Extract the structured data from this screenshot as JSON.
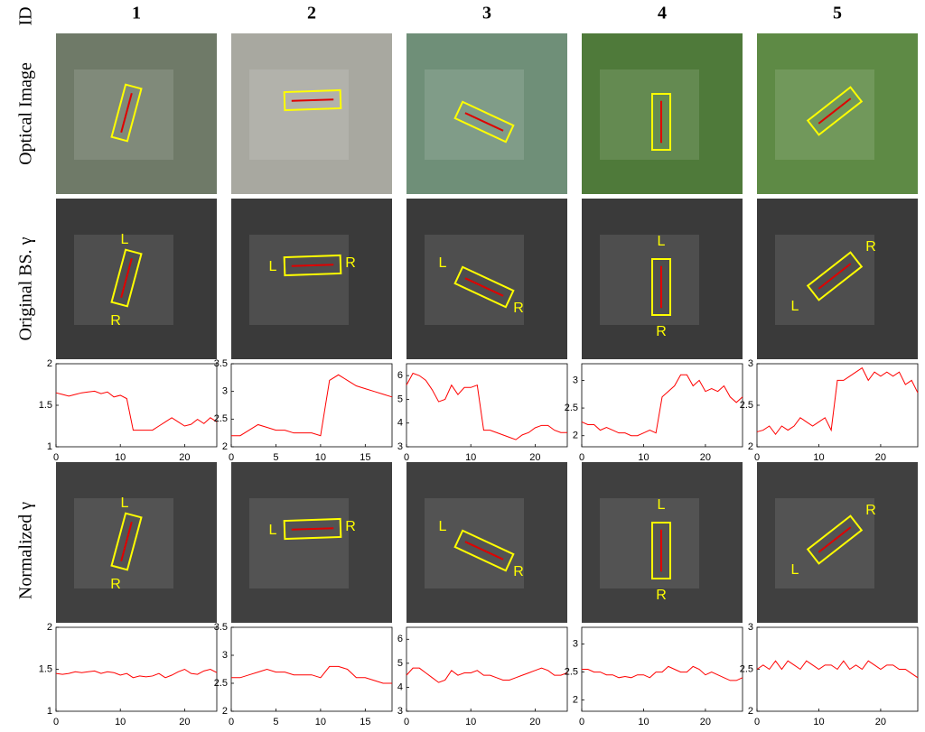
{
  "id_label": "ID",
  "column_ids": [
    "1",
    "2",
    "3",
    "4",
    "5"
  ],
  "row_labels": [
    "Optical Image",
    "Original BS. γ",
    "Normalized γ"
  ],
  "end_labels": {
    "left": "L",
    "right": "R"
  },
  "chart_data": [
    {
      "type": "line",
      "color": "#ff0000",
      "x": [
        0,
        1,
        2,
        3,
        4,
        5,
        6,
        7,
        8,
        9,
        10,
        11,
        12,
        13,
        14,
        15,
        16,
        17,
        18,
        19,
        20,
        21,
        22,
        23,
        24,
        25
      ],
      "values": [
        1.65,
        1.63,
        1.61,
        1.63,
        1.65,
        1.66,
        1.67,
        1.64,
        1.66,
        1.6,
        1.62,
        1.58,
        1.2,
        1.2,
        1.2,
        1.2,
        1.25,
        1.3,
        1.35,
        1.3,
        1.25,
        1.27,
        1.33,
        1.28,
        1.35,
        1.3
      ],
      "xlim": [
        0,
        25
      ],
      "xticks": [
        0,
        10,
        20
      ],
      "ylim": [
        1,
        2
      ],
      "yticks": [
        1,
        1.5,
        2
      ]
    },
    {
      "type": "line",
      "color": "#ff0000",
      "x": [
        0,
        1,
        2,
        3,
        4,
        5,
        6,
        7,
        8,
        9,
        10,
        11,
        12,
        13,
        14,
        15,
        16,
        17,
        18
      ],
      "values": [
        2.2,
        2.2,
        2.3,
        2.4,
        2.35,
        2.3,
        2.3,
        2.25,
        2.25,
        2.25,
        2.2,
        3.2,
        3.3,
        3.2,
        3.1,
        3.05,
        3.0,
        2.95,
        2.9
      ],
      "xlim": [
        0,
        18
      ],
      "xticks": [
        0,
        5,
        10,
        15
      ],
      "ylim": [
        2,
        3.5
      ],
      "yticks": [
        2,
        2.5,
        3,
        3.5
      ]
    },
    {
      "type": "line",
      "color": "#ff0000",
      "x": [
        0,
        1,
        2,
        3,
        4,
        5,
        6,
        7,
        8,
        9,
        10,
        11,
        12,
        13,
        14,
        15,
        16,
        17,
        18,
        19,
        20,
        21,
        22,
        23,
        24,
        25
      ],
      "values": [
        5.6,
        6.1,
        6.0,
        5.8,
        5.4,
        4.9,
        5.0,
        5.6,
        5.2,
        5.5,
        5.5,
        5.6,
        3.7,
        3.7,
        3.6,
        3.5,
        3.4,
        3.3,
        3.5,
        3.6,
        3.8,
        3.9,
        3.9,
        3.7,
        3.6,
        3.6
      ],
      "xlim": [
        0,
        25
      ],
      "xticks": [
        0,
        10,
        20
      ],
      "ylim": [
        3,
        6.5
      ],
      "yticks": [
        3,
        4,
        5,
        6
      ]
    },
    {
      "type": "line",
      "color": "#ff0000",
      "x": [
        0,
        1,
        2,
        3,
        4,
        5,
        6,
        7,
        8,
        9,
        10,
        11,
        12,
        13,
        14,
        15,
        16,
        17,
        18,
        19,
        20,
        21,
        22,
        23,
        24,
        25,
        26
      ],
      "values": [
        2.25,
        2.2,
        2.2,
        2.1,
        2.15,
        2.1,
        2.05,
        2.05,
        2.0,
        2.0,
        2.05,
        2.1,
        2.05,
        2.7,
        2.8,
        2.9,
        3.1,
        3.1,
        2.9,
        3.0,
        2.8,
        2.85,
        2.8,
        2.9,
        2.7,
        2.6,
        2.7
      ],
      "xlim": [
        0,
        26
      ],
      "xticks": [
        0,
        10,
        20
      ],
      "ylim": [
        1.8,
        3.3
      ],
      "yticks": [
        2,
        2.5,
        3
      ]
    },
    {
      "type": "line",
      "color": "#ff0000",
      "x": [
        0,
        1,
        2,
        3,
        4,
        5,
        6,
        7,
        8,
        9,
        10,
        11,
        12,
        13,
        14,
        15,
        16,
        17,
        18,
        19,
        20,
        21,
        22,
        23,
        24,
        25,
        26
      ],
      "values": [
        2.18,
        2.2,
        2.25,
        2.15,
        2.25,
        2.2,
        2.25,
        2.35,
        2.3,
        2.25,
        2.3,
        2.35,
        2.2,
        2.8,
        2.8,
        2.85,
        2.9,
        2.95,
        2.8,
        2.9,
        2.85,
        2.9,
        2.85,
        2.9,
        2.75,
        2.8,
        2.65
      ],
      "xlim": [
        0,
        26
      ],
      "xticks": [
        0,
        10,
        20
      ],
      "ylim": [
        2,
        3
      ],
      "yticks": [
        2,
        2.5,
        3
      ]
    },
    {
      "type": "line",
      "color": "#ff0000",
      "x": [
        0,
        1,
        2,
        3,
        4,
        5,
        6,
        7,
        8,
        9,
        10,
        11,
        12,
        13,
        14,
        15,
        16,
        17,
        18,
        19,
        20,
        21,
        22,
        23,
        24,
        25
      ],
      "values": [
        1.45,
        1.44,
        1.45,
        1.47,
        1.46,
        1.47,
        1.48,
        1.45,
        1.47,
        1.46,
        1.43,
        1.45,
        1.4,
        1.42,
        1.41,
        1.42,
        1.45,
        1.4,
        1.43,
        1.47,
        1.5,
        1.45,
        1.44,
        1.48,
        1.5,
        1.46
      ],
      "xlim": [
        0,
        25
      ],
      "xticks": [
        0,
        10,
        20
      ],
      "ylim": [
        1,
        2
      ],
      "yticks": [
        1,
        1.5,
        2
      ]
    },
    {
      "type": "line",
      "color": "#ff0000",
      "x": [
        0,
        1,
        2,
        3,
        4,
        5,
        6,
        7,
        8,
        9,
        10,
        11,
        12,
        13,
        14,
        15,
        16,
        17,
        18
      ],
      "values": [
        2.6,
        2.6,
        2.65,
        2.7,
        2.75,
        2.7,
        2.7,
        2.65,
        2.65,
        2.65,
        2.6,
        2.8,
        2.8,
        2.75,
        2.6,
        2.6,
        2.55,
        2.5,
        2.5
      ],
      "xlim": [
        0,
        18
      ],
      "xticks": [
        0,
        5,
        10,
        15
      ],
      "ylim": [
        2,
        3.5
      ],
      "yticks": [
        2,
        2.5,
        3,
        3.5
      ]
    },
    {
      "type": "line",
      "color": "#ff0000",
      "x": [
        0,
        1,
        2,
        3,
        4,
        5,
        6,
        7,
        8,
        9,
        10,
        11,
        12,
        13,
        14,
        15,
        16,
        17,
        18,
        19,
        20,
        21,
        22,
        23,
        24,
        25
      ],
      "values": [
        4.5,
        4.8,
        4.8,
        4.6,
        4.4,
        4.2,
        4.3,
        4.7,
        4.5,
        4.6,
        4.6,
        4.7,
        4.5,
        4.5,
        4.4,
        4.3,
        4.3,
        4.4,
        4.5,
        4.6,
        4.7,
        4.8,
        4.7,
        4.5,
        4.5,
        4.6
      ],
      "xlim": [
        0,
        25
      ],
      "xticks": [
        0,
        10,
        20
      ],
      "ylim": [
        3,
        6.5
      ],
      "yticks": [
        3,
        4,
        5,
        6
      ]
    },
    {
      "type": "line",
      "color": "#ff0000",
      "x": [
        0,
        1,
        2,
        3,
        4,
        5,
        6,
        7,
        8,
        9,
        10,
        11,
        12,
        13,
        14,
        15,
        16,
        17,
        18,
        19,
        20,
        21,
        22,
        23,
        24,
        25,
        26
      ],
      "values": [
        2.55,
        2.55,
        2.5,
        2.5,
        2.45,
        2.45,
        2.4,
        2.42,
        2.4,
        2.45,
        2.45,
        2.4,
        2.5,
        2.5,
        2.6,
        2.55,
        2.5,
        2.5,
        2.6,
        2.55,
        2.45,
        2.5,
        2.45,
        2.4,
        2.35,
        2.35,
        2.4
      ],
      "xlim": [
        0,
        26
      ],
      "xticks": [
        0,
        10,
        20
      ],
      "ylim": [
        1.8,
        3.3
      ],
      "yticks": [
        2,
        2.5,
        3
      ]
    },
    {
      "type": "line",
      "color": "#ff0000",
      "x": [
        0,
        1,
        2,
        3,
        4,
        5,
        6,
        7,
        8,
        9,
        10,
        11,
        12,
        13,
        14,
        15,
        16,
        17,
        18,
        19,
        20,
        21,
        22,
        23,
        24,
        25,
        26
      ],
      "values": [
        2.5,
        2.55,
        2.5,
        2.6,
        2.5,
        2.6,
        2.55,
        2.5,
        2.6,
        2.55,
        2.5,
        2.55,
        2.55,
        2.5,
        2.6,
        2.5,
        2.55,
        2.5,
        2.6,
        2.55,
        2.5,
        2.55,
        2.55,
        2.5,
        2.5,
        2.45,
        2.4
      ],
      "xlim": [
        0,
        26
      ],
      "xticks": [
        0,
        10,
        20
      ],
      "ylim": [
        2,
        3
      ],
      "yticks": [
        2,
        2.5,
        3
      ]
    }
  ]
}
